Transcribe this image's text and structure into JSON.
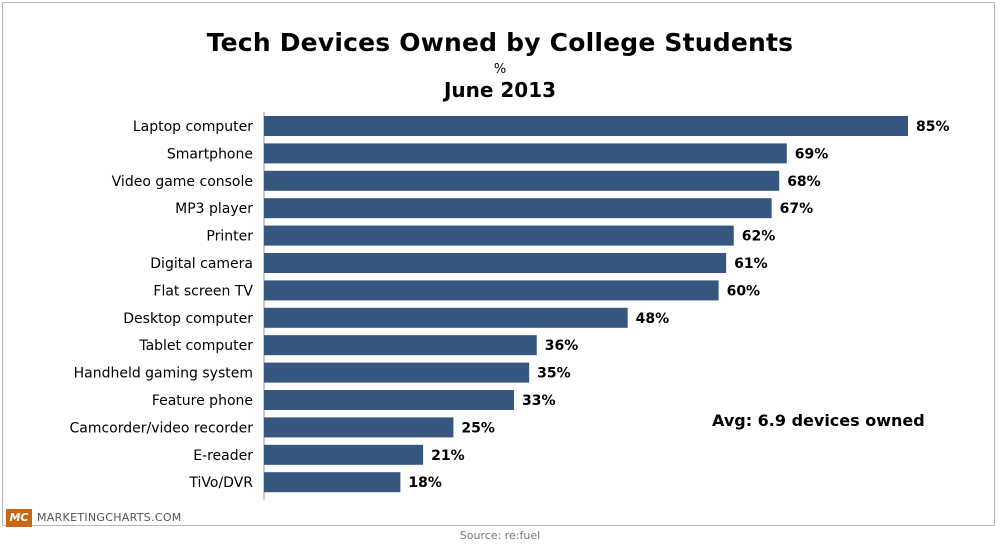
{
  "chart_data": {
    "type": "bar",
    "orientation": "horizontal",
    "title": "Tech Devices Owned by College Students",
    "unit": "%",
    "subtitle": "June 2013",
    "categories": [
      "Laptop computer",
      "Smartphone",
      "Video game console",
      "MP3 player",
      "Printer",
      "Digital camera",
      "Flat screen TV",
      "Desktop computer",
      "Tablet computer",
      "Handheld gaming system",
      "Feature phone",
      "Camcorder/video recorder",
      "E-reader",
      "TiVo/DVR"
    ],
    "values": [
      85,
      69,
      68,
      67,
      62,
      61,
      60,
      48,
      36,
      35,
      33,
      25,
      21,
      18
    ],
    "value_labels": [
      "85%",
      "69%",
      "68%",
      "67%",
      "62%",
      "61%",
      "60%",
      "48%",
      "36%",
      "35%",
      "33%",
      "25%",
      "21%",
      "18%"
    ],
    "xlim": [
      0,
      85
    ],
    "bar_color": "#34567f",
    "annotation": "Avg: 6.9 devices owned",
    "grid": false,
    "legend": "none"
  },
  "branding": {
    "logo_text": "MC",
    "site_name": "MARKETINGCHARTS.COM",
    "logo_color": "#c8661c"
  },
  "source": "Source: re:fuel"
}
